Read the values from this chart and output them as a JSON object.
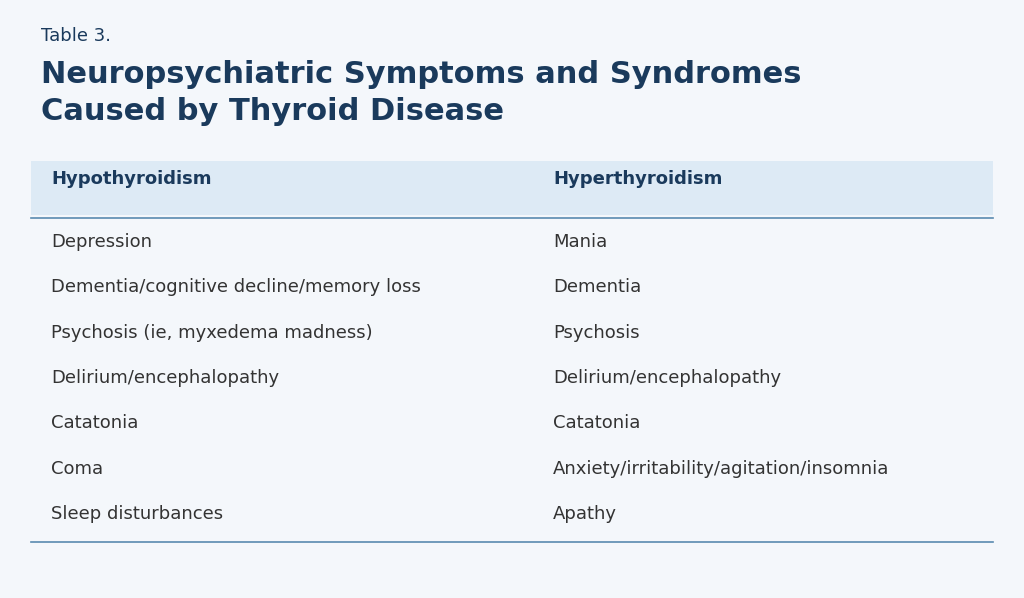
{
  "table_label": "Table 3.",
  "title_line1": "Neuropsychiatric Symptoms and Syndromes",
  "title_line2": "Caused by Thyroid Disease",
  "col1_header": "Hypothyroidism",
  "col2_header": "Hyperthyroidism",
  "col1_items": [
    "Depression",
    "Dementia/cognitive decline/memory loss",
    "Psychosis (ie, myxedema madness)",
    "Delirium/encephalopathy",
    "Catatonia",
    "Coma",
    "Sleep disturbances"
  ],
  "col2_items": [
    "Mania",
    "Dementia",
    "Psychosis",
    "Delirium/encephalopathy",
    "Catatonia",
    "Anxiety/irritability/agitation/insomnia",
    "Apathy"
  ],
  "bg_color": "#f4f7fb",
  "header_bg_color": "#ddeaf5",
  "header_text_color": "#1a3a5c",
  "title_color": "#1a3a5c",
  "label_color": "#1a3a5c",
  "body_text_color": "#333333",
  "line_color": "#5a8ab0",
  "table_label_fontsize": 13,
  "title_fontsize": 22,
  "header_fontsize": 13,
  "body_fontsize": 13
}
